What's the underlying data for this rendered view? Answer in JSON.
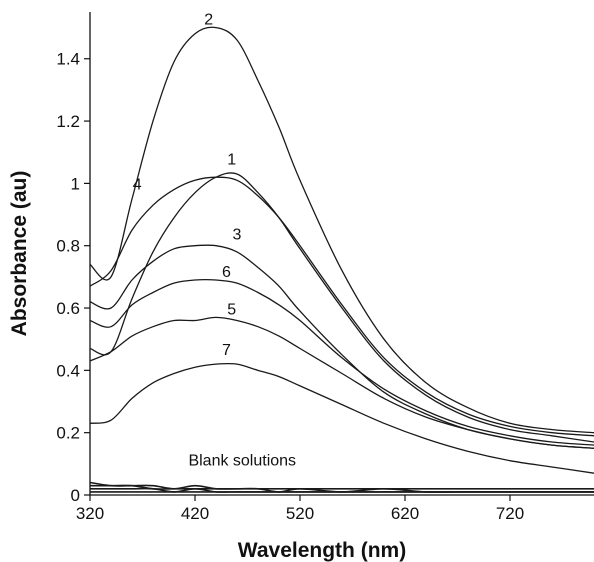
{
  "chart_data": {
    "type": "line",
    "xlabel": "Wavelength (nm)",
    "ylabel": "Absorbance (au)",
    "xlim": [
      320,
      800
    ],
    "ylim": [
      0,
      1.55
    ],
    "x_ticks": [
      320,
      420,
      520,
      620,
      720
    ],
    "x_tick_labels": [
      "320",
      "420",
      "520",
      "620",
      "720"
    ],
    "y_ticks": [
      0,
      0.2,
      0.4,
      0.6,
      0.8,
      1,
      1.2,
      1.4
    ],
    "y_tick_labels": [
      "0",
      "0.2",
      "0.4",
      "0.6",
      "0.8",
      "1",
      "1.2",
      "1.4"
    ],
    "grid": false,
    "x": [
      320,
      340,
      360,
      380,
      400,
      420,
      440,
      460,
      480,
      500,
      520,
      560,
      600,
      640,
      680,
      720,
      760,
      800
    ],
    "series": [
      {
        "name": "1",
        "label_at": [
          455,
          1.06
        ],
        "values": [
          0.47,
          0.46,
          0.63,
          0.78,
          0.89,
          0.97,
          1.02,
          1.03,
          0.97,
          0.89,
          0.79,
          0.6,
          0.43,
          0.32,
          0.25,
          0.21,
          0.19,
          0.17
        ]
      },
      {
        "name": "2",
        "label_at": [
          433,
          1.51
        ],
        "values": [
          0.74,
          0.7,
          0.95,
          1.2,
          1.39,
          1.48,
          1.5,
          1.46,
          1.33,
          1.18,
          1.01,
          0.72,
          0.5,
          0.36,
          0.28,
          0.23,
          0.21,
          0.2
        ]
      },
      {
        "name": "3",
        "label_at": [
          460,
          0.82
        ],
        "values": [
          0.62,
          0.6,
          0.69,
          0.75,
          0.79,
          0.8,
          0.8,
          0.78,
          0.73,
          0.67,
          0.59,
          0.45,
          0.33,
          0.26,
          0.21,
          0.18,
          0.16,
          0.15
        ]
      },
      {
        "name": "4",
        "label_at": [
          365,
          0.98
        ],
        "values": [
          0.67,
          0.72,
          0.85,
          0.93,
          0.98,
          1.01,
          1.02,
          1.01,
          0.96,
          0.89,
          0.8,
          0.61,
          0.44,
          0.33,
          0.26,
          0.22,
          0.2,
          0.19
        ]
      },
      {
        "name": "5",
        "label_at": [
          455,
          0.58
        ],
        "values": [
          0.43,
          0.46,
          0.51,
          0.54,
          0.56,
          0.56,
          0.57,
          0.56,
          0.54,
          0.51,
          0.47,
          0.39,
          0.31,
          0.25,
          0.21,
          0.18,
          0.16,
          0.15
        ]
      },
      {
        "name": "6",
        "label_at": [
          450,
          0.7
        ],
        "values": [
          0.56,
          0.54,
          0.61,
          0.65,
          0.68,
          0.69,
          0.69,
          0.68,
          0.65,
          0.61,
          0.56,
          0.44,
          0.34,
          0.27,
          0.22,
          0.19,
          0.17,
          0.16
        ]
      },
      {
        "name": "7",
        "label_at": [
          450,
          0.45
        ],
        "values": [
          0.23,
          0.24,
          0.31,
          0.36,
          0.39,
          0.41,
          0.42,
          0.42,
          0.4,
          0.38,
          0.35,
          0.29,
          0.23,
          0.18,
          0.14,
          0.11,
          0.09,
          0.07
        ]
      }
    ],
    "blank_series": [
      {
        "values": [
          0.03,
          0.03,
          0.03,
          0.02,
          0.02,
          0.02,
          0.02,
          0.02,
          0.02,
          0.02,
          0.02,
          0.02,
          0.02,
          0.02,
          0.02,
          0.02,
          0.02,
          0.02
        ]
      },
      {
        "values": [
          0.02,
          0.02,
          0.02,
          0.02,
          0.01,
          0.02,
          0.01,
          0.01,
          0.01,
          0.01,
          0.01,
          0.01,
          0.01,
          0.01,
          0.01,
          0.01,
          0.01,
          0.01
        ]
      },
      {
        "values": [
          0.01,
          0.01,
          0.01,
          0.01,
          0.01,
          0.01,
          0.01,
          0.01,
          0.01,
          0.01,
          0.01,
          0.01,
          0.01,
          0.01,
          0.01,
          0.01,
          0.01,
          0.01
        ]
      },
      {
        "values": [
          0.04,
          0.03,
          0.03,
          0.03,
          0.02,
          0.03,
          0.02,
          0.02,
          0.02,
          0.01,
          0.02,
          0.01,
          0.02,
          0.01,
          0.01,
          0.01,
          0.01,
          0.01
        ]
      }
    ],
    "annotation": {
      "text": "Blank solutions",
      "at": [
        465,
        0.095
      ]
    }
  }
}
